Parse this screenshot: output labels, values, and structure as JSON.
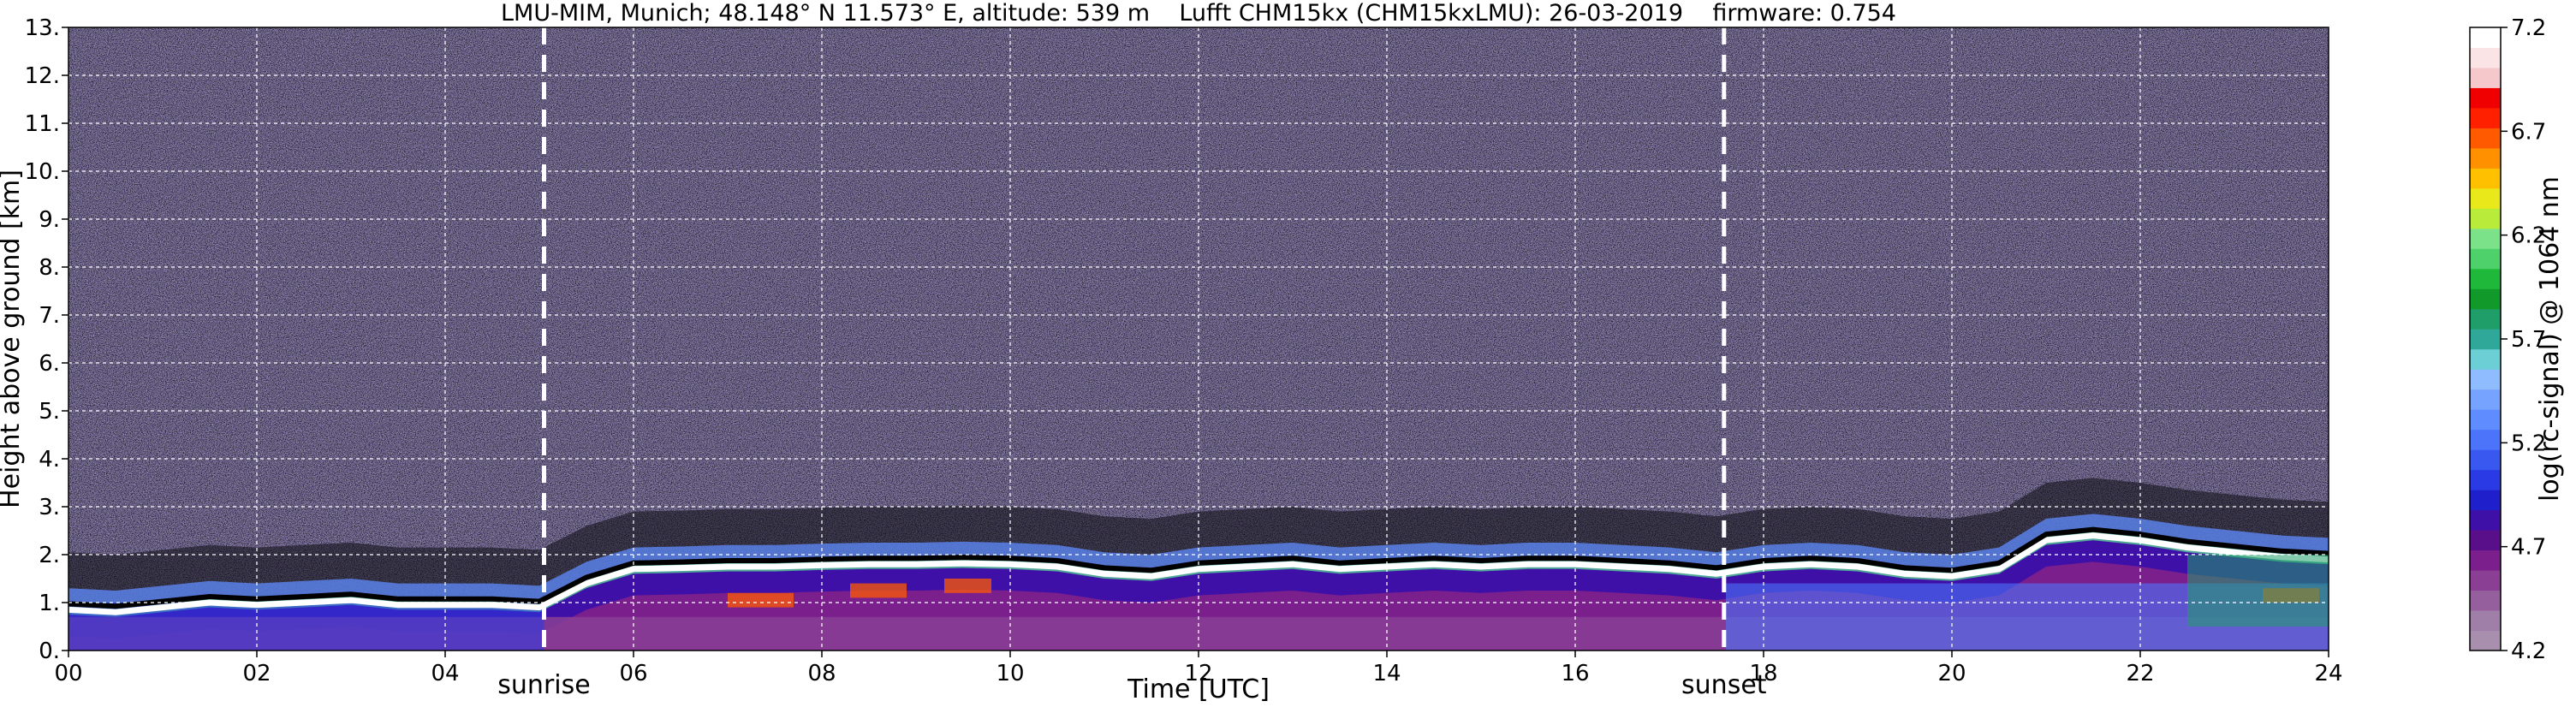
{
  "chart_data": {
    "type": "heatmap",
    "title": "LMU-MIM, Munich; 48.148° N 11.573° E, altitude: 539 m    Lufft CHM15kx (CHM15kxLMU): 26-03-2019    firmware: 0.754",
    "xlabel": "Time [UTC]",
    "ylabel": "Height above ground [km]",
    "xlim": [
      0,
      24
    ],
    "ylim": [
      0,
      13
    ],
    "x_ticks": [
      "00",
      "02",
      "04",
      "06",
      "08",
      "10",
      "12",
      "14",
      "16",
      "18",
      "20",
      "22",
      "24"
    ],
    "y_ticks": [
      "0.",
      "1.",
      "2.",
      "3.",
      "4.",
      "5.",
      "6.",
      "7.",
      "8.",
      "9.",
      "10.",
      "11.",
      "12.",
      "13."
    ],
    "grid": true,
    "colorbar": {
      "label": "log(rc-signal) @ 1064 nm",
      "range": [
        4.2,
        7.2
      ],
      "ticks": [
        "4.2",
        "4.7",
        "5.2",
        "5.7",
        "6.2",
        "6.7",
        "7.2"
      ],
      "colors": [
        "#a98fae",
        "#9f7fa7",
        "#955f9d",
        "#8a3f94",
        "#7a1f8c",
        "#5a0f8a",
        "#3f10a8",
        "#1f20cc",
        "#2a3be6",
        "#3858f0",
        "#4b74fb",
        "#5f8cff",
        "#76a3ff",
        "#8fbcff",
        "#6ccfd5",
        "#2fa89a",
        "#1f9e6a",
        "#119a2a",
        "#1fb83a",
        "#4ed06a",
        "#7be28a",
        "#b9ec3a",
        "#e8e81a",
        "#ffc000",
        "#ff9000",
        "#ff5a00",
        "#ff2000",
        "#f00000",
        "#f5c8cc",
        "#fbe4e6",
        "#ffffff"
      ]
    },
    "annotations": [
      {
        "text": "sunrise",
        "x": 5.05
      },
      {
        "text": "sunset",
        "x": 17.58
      }
    ],
    "cloud_base_km": [
      [
        0.0,
        0.85
      ],
      [
        0.5,
        0.8
      ],
      [
        1.0,
        0.9
      ],
      [
        1.5,
        1.0
      ],
      [
        2.0,
        0.95
      ],
      [
        2.5,
        1.0
      ],
      [
        3.0,
        1.05
      ],
      [
        3.5,
        0.95
      ],
      [
        4.0,
        0.95
      ],
      [
        4.5,
        0.95
      ],
      [
        5.0,
        0.9
      ],
      [
        5.5,
        1.4
      ],
      [
        6.0,
        1.7
      ],
      [
        6.5,
        1.72
      ],
      [
        7.0,
        1.75
      ],
      [
        7.5,
        1.75
      ],
      [
        8.0,
        1.78
      ],
      [
        8.5,
        1.8
      ],
      [
        9.0,
        1.8
      ],
      [
        9.5,
        1.82
      ],
      [
        10.0,
        1.8
      ],
      [
        10.5,
        1.75
      ],
      [
        11.0,
        1.6
      ],
      [
        11.5,
        1.55
      ],
      [
        12.0,
        1.7
      ],
      [
        12.5,
        1.75
      ],
      [
        13.0,
        1.8
      ],
      [
        13.5,
        1.7
      ],
      [
        14.0,
        1.75
      ],
      [
        14.5,
        1.8
      ],
      [
        15.0,
        1.75
      ],
      [
        15.5,
        1.8
      ],
      [
        16.0,
        1.8
      ],
      [
        16.5,
        1.75
      ],
      [
        17.0,
        1.7
      ],
      [
        17.5,
        1.6
      ],
      [
        18.0,
        1.75
      ],
      [
        18.5,
        1.8
      ],
      [
        19.0,
        1.75
      ],
      [
        19.5,
        1.6
      ],
      [
        20.0,
        1.55
      ],
      [
        20.5,
        1.7
      ],
      [
        21.0,
        2.3
      ],
      [
        21.5,
        2.4
      ],
      [
        22.0,
        2.3
      ],
      [
        22.5,
        2.15
      ],
      [
        23.0,
        2.05
      ],
      [
        23.5,
        1.95
      ],
      [
        24.0,
        1.9
      ]
    ]
  }
}
